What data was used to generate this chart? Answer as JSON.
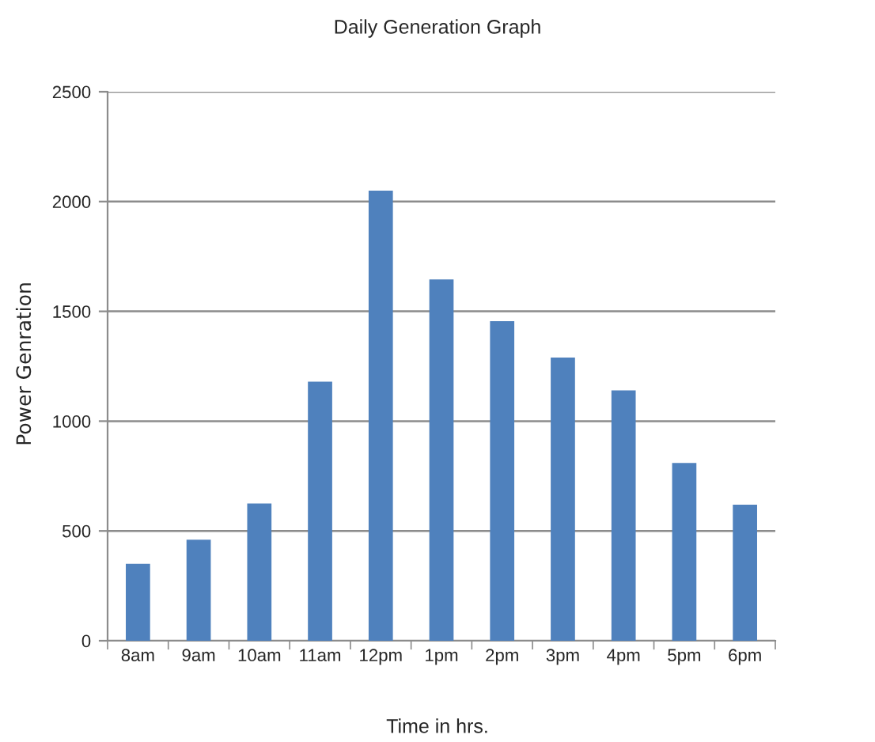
{
  "chart_data": {
    "type": "bar",
    "title": "Daily Generation Graph",
    "xlabel": "Time in hrs.",
    "ylabel": "Power Genration",
    "categories": [
      "8am",
      "9am",
      "10am",
      "11am",
      "12pm",
      "1pm",
      "2pm",
      "3pm",
      "4pm",
      "5pm",
      "6pm"
    ],
    "values": [
      350,
      460,
      625,
      1180,
      2050,
      1645,
      1455,
      1290,
      1140,
      810,
      620
    ],
    "color": "#4f81bd",
    "ylim": [
      0,
      2500
    ],
    "yticks": [
      0,
      500,
      1000,
      1500,
      2000,
      2500
    ],
    "grid": "y"
  }
}
